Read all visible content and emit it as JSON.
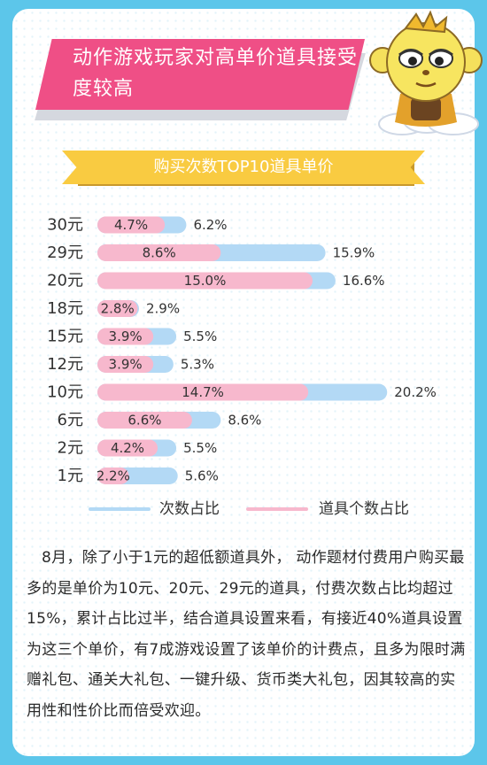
{
  "header": {
    "title": "动作游戏玩家对高单价道具接受度较高"
  },
  "chart_data": {
    "type": "bar",
    "title": "购买次数TOP10道具单价",
    "categories": [
      "30元",
      "29元",
      "20元",
      "18元",
      "15元",
      "12元",
      "10元",
      "6元",
      "2元",
      "1元"
    ],
    "series": [
      {
        "name": "次数占比",
        "color": "#b3d9f5",
        "values": [
          6.2,
          15.9,
          16.6,
          2.9,
          5.5,
          5.3,
          20.2,
          8.6,
          5.5,
          5.6
        ],
        "labels": [
          "6.2%",
          "15.9%",
          "16.6%",
          "2.9%",
          "5.5%",
          "5.3%",
          "20.2%",
          "8.6%",
          "5.5%",
          "5.6%"
        ]
      },
      {
        "name": "道具个数占比",
        "color": "#f7b8cd",
        "values": [
          4.7,
          8.6,
          15.0,
          2.8,
          3.9,
          3.9,
          14.7,
          6.6,
          4.2,
          2.2
        ],
        "labels": [
          "4.7%",
          "8.6%",
          "15.0%",
          "2.8%",
          "3.9%",
          "3.9%",
          "14.7%",
          "6.6%",
          "4.2%",
          "2.2%"
        ]
      }
    ],
    "legend_position": "bottom"
  },
  "description": "8月，除了小于1元的超低额道具外， 动作题材付费用户购买最多的是单价为10元、20元、29元的道具，付费次数占比均超过15%，累计占比过半，结合道具设置来看，有接近40%道具设置为这三个单价，有7成游戏设置了该单价的计费点，且多为限时满赠礼包、通关大礼包、一键升级、货币类大礼包，因其较高的实用性和性价比而倍受欢迎。"
}
